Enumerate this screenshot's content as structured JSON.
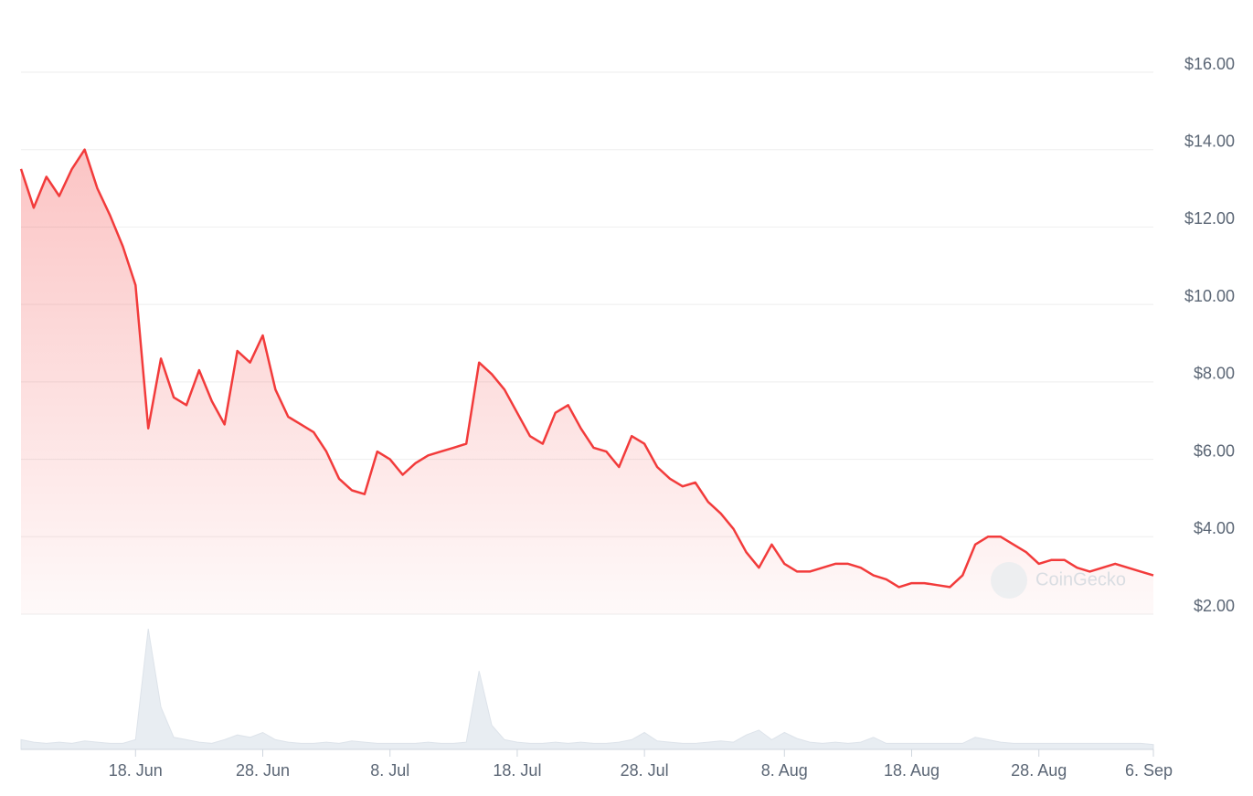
{
  "chart_data": {
    "type": "line",
    "categories": [
      null,
      null,
      null,
      null,
      null,
      null,
      null,
      null,
      null,
      "18. Jun",
      null,
      null,
      null,
      null,
      null,
      null,
      null,
      null,
      null,
      "28. Jun",
      null,
      null,
      null,
      null,
      null,
      null,
      null,
      null,
      null,
      "8. Jul",
      null,
      null,
      null,
      null,
      null,
      null,
      null,
      null,
      null,
      "18. Jul",
      null,
      null,
      null,
      null,
      null,
      null,
      null,
      null,
      null,
      "28. Jul",
      null,
      null,
      null,
      null,
      null,
      null,
      null,
      null,
      null,
      null,
      "8. Aug",
      null,
      null,
      null,
      null,
      null,
      null,
      null,
      null,
      null,
      "18. Aug",
      null,
      null,
      null,
      null,
      null,
      null,
      null,
      null,
      null,
      "28. Aug",
      null,
      null,
      null,
      null,
      null,
      null,
      null,
      null,
      "6. Sep"
    ],
    "series": [
      {
        "name": "Price",
        "color": "#f23b3b",
        "values": [
          13.5,
          12.5,
          13.3,
          12.8,
          13.5,
          14.0,
          13.0,
          12.3,
          11.5,
          10.5,
          6.8,
          8.6,
          7.6,
          7.4,
          8.3,
          7.5,
          6.9,
          8.8,
          8.5,
          9.2,
          7.8,
          7.1,
          6.9,
          6.7,
          6.2,
          5.5,
          5.2,
          5.1,
          6.2,
          6.0,
          5.6,
          5.9,
          6.1,
          6.2,
          6.3,
          6.4,
          8.5,
          8.2,
          7.8,
          7.2,
          6.6,
          6.4,
          7.2,
          7.4,
          6.8,
          6.3,
          6.2,
          5.8,
          6.6,
          6.4,
          5.8,
          5.5,
          5.3,
          5.4,
          4.9,
          4.6,
          4.2,
          3.6,
          3.2,
          3.8,
          3.3,
          3.1,
          3.1,
          3.2,
          3.3,
          3.3,
          3.2,
          3.0,
          2.9,
          2.7,
          2.8,
          2.8,
          2.75,
          2.7,
          3.0,
          3.8,
          4.0,
          4.0,
          3.8,
          3.6,
          3.3,
          3.4,
          3.4,
          3.2,
          3.1,
          3.2,
          3.3,
          3.2,
          3.1,
          3.0
        ]
      },
      {
        "name": "Volume",
        "color": "#e8edf2",
        "axis": "y2",
        "values": [
          8,
          6,
          5,
          6,
          5,
          7,
          6,
          5,
          5,
          8,
          100,
          35,
          10,
          8,
          6,
          5,
          8,
          12,
          10,
          14,
          8,
          6,
          5,
          5,
          6,
          5,
          7,
          6,
          5,
          5,
          5,
          5,
          6,
          5,
          5,
          6,
          65,
          20,
          8,
          6,
          5,
          5,
          6,
          5,
          6,
          5,
          5,
          6,
          8,
          14,
          7,
          6,
          5,
          5,
          6,
          7,
          6,
          12,
          16,
          8,
          14,
          9,
          6,
          5,
          6,
          5,
          6,
          10,
          5,
          5,
          5,
          5,
          5,
          5,
          5,
          10,
          8,
          6,
          5,
          5,
          5,
          5,
          5,
          5,
          5,
          5,
          5,
          5,
          5,
          4
        ]
      }
    ],
    "ylim": [
      2,
      16
    ],
    "yticks": [
      {
        "value": 2,
        "label": "$2.00"
      },
      {
        "value": 4,
        "label": "$4.00"
      },
      {
        "value": 6,
        "label": "$6.00"
      },
      {
        "value": 8,
        "label": "$8.00"
      },
      {
        "value": 10,
        "label": "$10.00"
      },
      {
        "value": 12,
        "label": "$12.00"
      },
      {
        "value": 14,
        "label": "$14.00"
      },
      {
        "value": 16,
        "label": "$16.00"
      }
    ],
    "y2lim": [
      0,
      100
    ],
    "grid": true,
    "watermark": "CoinGecko"
  }
}
